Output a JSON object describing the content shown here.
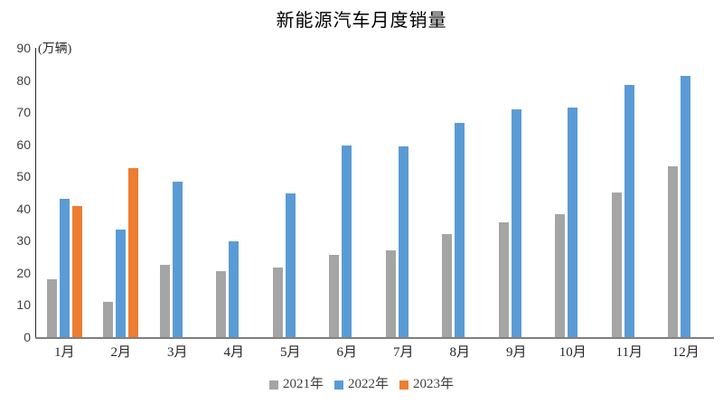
{
  "chart_data": {
    "type": "bar",
    "title": "新能源汽车月度销量",
    "y_unit": "(万辆)",
    "categories": [
      "1月",
      "2月",
      "3月",
      "4月",
      "5月",
      "6月",
      "7月",
      "8月",
      "9月",
      "10月",
      "11月",
      "12月"
    ],
    "series": [
      {
        "name": "2021年",
        "color": "#A5A5A5",
        "values": [
          17.9,
          11.0,
          22.6,
          20.6,
          21.7,
          25.6,
          27.1,
          32.1,
          35.7,
          38.3,
          45.0,
          53.1
        ]
      },
      {
        "name": "2022年",
        "color": "#5B9BD5",
        "values": [
          43.1,
          33.4,
          48.4,
          29.9,
          44.7,
          59.6,
          59.3,
          66.6,
          70.8,
          71.4,
          78.6,
          81.4
        ]
      },
      {
        "name": "2023年",
        "color": "#ED7D31",
        "values": [
          40.8,
          52.5,
          null,
          null,
          null,
          null,
          null,
          null,
          null,
          null,
          null,
          null
        ]
      }
    ],
    "ylim": [
      0,
      90
    ],
    "y_ticks": [
      90,
      80,
      70,
      60,
      50,
      40,
      30,
      20,
      10,
      0
    ],
    "grid": false,
    "legend_position": "bottom",
    "colors": {
      "x_axis_line": "#808080",
      "y_axis_line": "#262626",
      "tick_text": "#404040",
      "title_text": "#000000"
    }
  }
}
